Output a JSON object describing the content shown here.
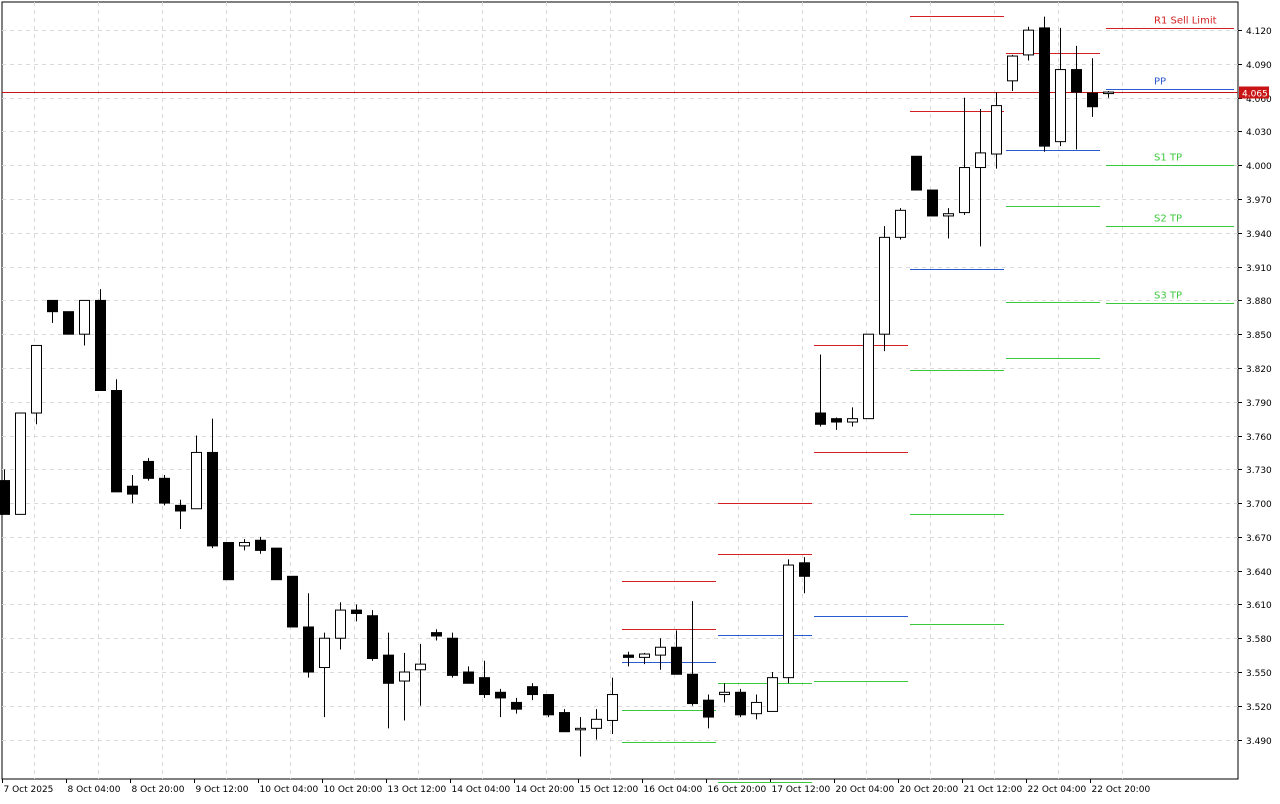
{
  "chart_data": {
    "type": "candlestick",
    "y_axis": {
      "min": 3.455,
      "max": 4.145,
      "ticks": [
        "4.120",
        "4.090",
        "4.060",
        "4.030",
        "4.000",
        "3.970",
        "3.940",
        "3.910",
        "3.880",
        "3.850",
        "3.820",
        "3.790",
        "3.760",
        "3.730",
        "3.700",
        "3.670",
        "3.640",
        "3.610",
        "3.580",
        "3.550",
        "3.520",
        "3.490"
      ]
    },
    "x_labels": [
      "7 Oct 2025",
      "8 Oct 04:00",
      "8 Oct 20:00",
      "9 Oct 12:00",
      "10 Oct 04:00",
      "10 Oct 20:00",
      "13 Oct 12:00",
      "14 Oct 04:00",
      "14 Oct 20:00",
      "15 Oct 12:00",
      "16 Oct 04:00",
      "16 Oct 20:00",
      "17 Oct 12:00",
      "20 Oct 04:00",
      "20 Oct 20:00",
      "21 Oct 12:00",
      "22 Oct 04:00",
      "22 Oct 20:00"
    ],
    "candles": [
      {
        "o": 3.72,
        "h": 3.73,
        "l": 3.69,
        "c": 3.69
      },
      {
        "o": 3.69,
        "h": 3.78,
        "l": 3.69,
        "c": 3.78
      },
      {
        "o": 3.78,
        "h": 3.84,
        "l": 3.77,
        "c": 3.84
      },
      {
        "o": 3.88,
        "h": 3.88,
        "l": 3.86,
        "c": 3.87
      },
      {
        "o": 3.87,
        "h": 3.87,
        "l": 3.85,
        "c": 3.85
      },
      {
        "o": 3.85,
        "h": 3.88,
        "l": 3.84,
        "c": 3.88
      },
      {
        "o": 3.88,
        "h": 3.89,
        "l": 3.8,
        "c": 3.8
      },
      {
        "o": 3.8,
        "h": 3.81,
        "l": 3.71,
        "c": 3.71
      },
      {
        "o": 3.715,
        "h": 3.725,
        "l": 3.7,
        "c": 3.708
      },
      {
        "o": 3.737,
        "h": 3.74,
        "l": 3.72,
        "c": 3.722
      },
      {
        "o": 3.722,
        "h": 3.725,
        "l": 3.698,
        "c": 3.7
      },
      {
        "o": 3.698,
        "h": 3.703,
        "l": 3.677,
        "c": 3.693
      },
      {
        "o": 3.695,
        "h": 3.76,
        "l": 3.695,
        "c": 3.745
      },
      {
        "o": 3.745,
        "h": 3.775,
        "l": 3.66,
        "c": 3.662
      },
      {
        "o": 3.665,
        "h": 3.665,
        "l": 3.632,
        "c": 3.632
      },
      {
        "o": 3.662,
        "h": 3.668,
        "l": 3.658,
        "c": 3.665
      },
      {
        "o": 3.667,
        "h": 3.67,
        "l": 3.655,
        "c": 3.658
      },
      {
        "o": 3.66,
        "h": 3.66,
        "l": 3.632,
        "c": 3.632
      },
      {
        "o": 3.635,
        "h": 3.635,
        "l": 3.59,
        "c": 3.59
      },
      {
        "o": 3.59,
        "h": 3.62,
        "l": 3.545,
        "c": 3.55
      },
      {
        "o": 3.554,
        "h": 3.585,
        "l": 3.51,
        "c": 3.58
      },
      {
        "o": 3.58,
        "h": 3.612,
        "l": 3.57,
        "c": 3.605
      },
      {
        "o": 3.605,
        "h": 3.61,
        "l": 3.595,
        "c": 3.602
      },
      {
        "o": 3.6,
        "h": 3.605,
        "l": 3.56,
        "c": 3.562
      },
      {
        "o": 3.565,
        "h": 3.585,
        "l": 3.5,
        "c": 3.54
      },
      {
        "o": 3.542,
        "h": 3.567,
        "l": 3.507,
        "c": 3.55
      },
      {
        "o": 3.552,
        "h": 3.575,
        "l": 3.52,
        "c": 3.557
      },
      {
        "o": 3.585,
        "h": 3.588,
        "l": 3.578,
        "c": 3.582
      },
      {
        "o": 3.58,
        "h": 3.585,
        "l": 3.545,
        "c": 3.547
      },
      {
        "o": 3.55,
        "h": 3.555,
        "l": 3.54,
        "c": 3.54
      },
      {
        "o": 3.545,
        "h": 3.56,
        "l": 3.527,
        "c": 3.53
      },
      {
        "o": 3.532,
        "h": 3.535,
        "l": 3.51,
        "c": 3.527
      },
      {
        "o": 3.523,
        "h": 3.527,
        "l": 3.513,
        "c": 3.517
      },
      {
        "o": 3.537,
        "h": 3.54,
        "l": 3.525,
        "c": 3.53
      },
      {
        "o": 3.53,
        "h": 3.53,
        "l": 3.51,
        "c": 3.512
      },
      {
        "o": 3.514,
        "h": 3.517,
        "l": 3.497,
        "c": 3.497
      },
      {
        "o": 3.5,
        "h": 3.51,
        "l": 3.475,
        "c": 3.5
      },
      {
        "o": 3.5,
        "h": 3.517,
        "l": 3.49,
        "c": 3.508
      },
      {
        "o": 3.507,
        "h": 3.545,
        "l": 3.495,
        "c": 3.53
      },
      {
        "o": 3.565,
        "h": 3.568,
        "l": 3.555,
        "c": 3.563
      },
      {
        "o": 3.563,
        "h": 3.567,
        "l": 3.557,
        "c": 3.566
      },
      {
        "o": 3.565,
        "h": 3.58,
        "l": 3.552,
        "c": 3.572
      },
      {
        "o": 3.572,
        "h": 3.587,
        "l": 3.548,
        "c": 3.548
      },
      {
        "o": 3.548,
        "h": 3.613,
        "l": 3.52,
        "c": 3.522
      },
      {
        "o": 3.525,
        "h": 3.53,
        "l": 3.5,
        "c": 3.51
      },
      {
        "o": 3.53,
        "h": 3.54,
        "l": 3.523,
        "c": 3.532
      },
      {
        "o": 3.532,
        "h": 3.535,
        "l": 3.51,
        "c": 3.512
      },
      {
        "o": 3.513,
        "h": 3.53,
        "l": 3.508,
        "c": 3.523
      },
      {
        "o": 3.515,
        "h": 3.55,
        "l": 3.515,
        "c": 3.545
      },
      {
        "o": 3.545,
        "h": 3.65,
        "l": 3.54,
        "c": 3.645
      },
      {
        "o": 3.647,
        "h": 3.652,
        "l": 3.62,
        "c": 3.635
      },
      {
        "o": 3.78,
        "h": 3.832,
        "l": 3.768,
        "c": 3.77
      },
      {
        "o": 3.775,
        "h": 3.776,
        "l": 3.765,
        "c": 3.772
      },
      {
        "o": 3.772,
        "h": 3.785,
        "l": 3.768,
        "c": 3.775
      },
      {
        "o": 3.775,
        "h": 3.85,
        "l": 3.775,
        "c": 3.85
      },
      {
        "o": 3.85,
        "h": 3.946,
        "l": 3.835,
        "c": 3.936
      },
      {
        "o": 3.936,
        "h": 3.962,
        "l": 3.934,
        "c": 3.96
      },
      {
        "o": 4.008,
        "h": 4.008,
        "l": 3.978,
        "c": 3.978
      },
      {
        "o": 3.978,
        "h": 3.978,
        "l": 3.955,
        "c": 3.955
      },
      {
        "o": 3.955,
        "h": 3.962,
        "l": 3.935,
        "c": 3.957
      },
      {
        "o": 3.958,
        "h": 4.06,
        "l": 3.956,
        "c": 3.998
      },
      {
        "o": 3.998,
        "h": 4.05,
        "l": 3.928,
        "c": 4.011
      },
      {
        "o": 4.01,
        "h": 4.065,
        "l": 3.997,
        "c": 4.053
      },
      {
        "o": 4.075,
        "h": 4.098,
        "l": 4.066,
        "c": 4.097
      },
      {
        "o": 4.098,
        "h": 4.123,
        "l": 4.093,
        "c": 4.12
      },
      {
        "o": 4.122,
        "h": 4.132,
        "l": 4.012,
        "c": 4.017
      },
      {
        "o": 4.021,
        "h": 4.122,
        "l": 4.017,
        "c": 4.085
      },
      {
        "o": 4.085,
        "h": 4.106,
        "l": 4.014,
        "c": 4.065
      },
      {
        "o": 4.064,
        "h": 4.095,
        "l": 4.043,
        "c": 4.052
      },
      {
        "o": 4.064,
        "h": 4.066,
        "l": 4.06,
        "c": 4.065
      }
    ],
    "pivot_levels": [
      {
        "start_bar": 39,
        "end_bar": 44,
        "r2": 3.631,
        "r1": 3.588,
        "pp": 3.559,
        "s1": 3.516,
        "s2": 3.488
      },
      {
        "start_bar": 45,
        "end_bar": 50,
        "r2": 3.7,
        "r1": 3.655,
        "pp": 3.583,
        "s1": 3.54,
        "s2": 3.452
      },
      {
        "start_bar": 51,
        "end_bar": 56,
        "r2": 3.745,
        "r1": 3.84,
        "pp": 3.6,
        "s1": 3.542
      },
      {
        "start_bar": 57,
        "end_bar": 62,
        "r2": 4.133,
        "r1": 4.048,
        "pp": 3.908,
        "s1": 3.818,
        "s2": 3.69,
        "s3": 3.593
      },
      {
        "start_bar": 63,
        "end_bar": 68,
        "r1": 4.1,
        "pp": 4.014,
        "s1": 3.964,
        "s2": 3.879,
        "s3": 3.829
      }
    ],
    "right_levels": [
      {
        "label": "R1 Sell Limit",
        "value": 4.122,
        "color": "#d42020"
      },
      {
        "label": "PP",
        "value": 4.068,
        "color": "#2a5ad0"
      },
      {
        "label": "S1 TP",
        "value": 4.0,
        "color": "#3cc83c"
      },
      {
        "label": "S2 TP",
        "value": 3.946,
        "color": "#3cc83c"
      },
      {
        "label": "S3 TP",
        "value": 3.878,
        "color": "#3cc83c"
      }
    ],
    "current_price": {
      "label": "4.065",
      "value": 4.065,
      "color": "#c81414"
    },
    "colors": {
      "bull_body": "#ffffff",
      "bear_body": "#000000",
      "resistance": "#d42020",
      "support": "#3cc83c",
      "pivot": "#2a5ad0"
    }
  }
}
